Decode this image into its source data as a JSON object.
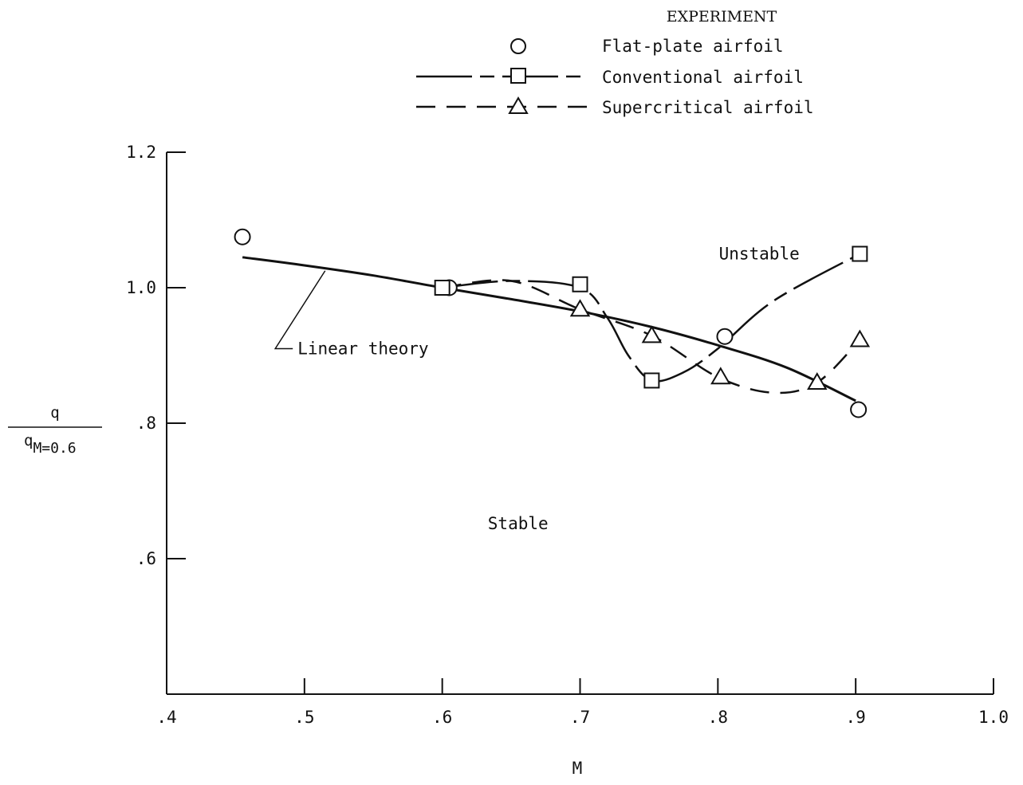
{
  "chart_data": {
    "type": "line",
    "xlabel": "M",
    "ylabel": {
      "numerator": "q",
      "denominator_base": "q",
      "denominator_sub": "M=0.6"
    },
    "xlim": [
      0.4,
      1.0
    ],
    "ylim": [
      0.4,
      1.2
    ],
    "x_ticks": [
      {
        "value": 0.4,
        "label": ".4"
      },
      {
        "value": 0.5,
        "label": ".5"
      },
      {
        "value": 0.6,
        "label": ".6"
      },
      {
        "value": 0.7,
        "label": ".7"
      },
      {
        "value": 0.8,
        "label": ".8"
      },
      {
        "value": 0.9,
        "label": ".9"
      },
      {
        "value": 1.0,
        "label": "1.0"
      }
    ],
    "y_ticks": [
      {
        "value": 0.6,
        "label": ".6"
      },
      {
        "value": 0.8,
        "label": ".8"
      },
      {
        "value": 1.0,
        "label": "1.0"
      },
      {
        "value": 1.2,
        "label": "1.2"
      }
    ],
    "grid": false,
    "legend": {
      "title": "EXPERIMENT",
      "placement": "top-right",
      "entries": [
        {
          "name": "Flat-plate airfoil",
          "marker": "circle",
          "line": "none"
        },
        {
          "name": "Conventional airfoil",
          "marker": "square",
          "line": "long-dash-short-dash"
        },
        {
          "name": "Supercritical airfoil",
          "marker": "triangle",
          "line": "dashed"
        }
      ]
    },
    "series": [
      {
        "name": "Flat-plate airfoil",
        "marker": "circle",
        "line": "none",
        "x": [
          0.455,
          0.605,
          0.805,
          0.902
        ],
        "y": [
          1.075,
          1.0,
          0.928,
          0.82
        ]
      },
      {
        "name": "Conventional airfoil",
        "marker": "square",
        "line": "long-dash-short-dash",
        "x": [
          0.6,
          0.7,
          0.752,
          0.903
        ],
        "y": [
          1.0,
          1.005,
          0.863,
          1.05
        ]
      },
      {
        "name": "Supercritical airfoil",
        "marker": "triangle",
        "line": "dashed",
        "x": [
          0.7,
          0.752,
          0.802,
          0.872,
          0.903
        ],
        "y": [
          0.968,
          0.929,
          0.868,
          0.86,
          0.923
        ]
      }
    ],
    "theory_curve": {
      "x": [
        0.455,
        0.5,
        0.55,
        0.6,
        0.65,
        0.7,
        0.75,
        0.8,
        0.85,
        0.9
      ],
      "y": [
        1.045,
        1.033,
        1.018,
        1.0,
        0.983,
        0.965,
        0.943,
        0.915,
        0.882,
        0.833
      ]
    },
    "conventional_curve": {
      "x": [
        0.6,
        0.65,
        0.7,
        0.72,
        0.735,
        0.752,
        0.775,
        0.8,
        0.84,
        0.903
      ],
      "y": [
        1.0,
        1.01,
        1.0,
        0.955,
        0.9,
        0.863,
        0.875,
        0.91,
        0.98,
        1.05
      ]
    },
    "supercritical_curve": {
      "x": [
        0.6,
        0.65,
        0.7,
        0.752,
        0.8,
        0.84,
        0.872,
        0.903
      ],
      "y": [
        1.0,
        1.01,
        0.968,
        0.929,
        0.868,
        0.845,
        0.86,
        0.923
      ]
    },
    "annotations": [
      {
        "text": "Unstable",
        "x": 0.83,
        "y": 1.05
      },
      {
        "text": "Stable",
        "x": 0.655,
        "y": 0.652
      },
      {
        "text": "Linear theory",
        "x": 0.495,
        "y": 0.91,
        "points_to": {
          "x": 0.515,
          "y": 1.025
        }
      }
    ]
  }
}
